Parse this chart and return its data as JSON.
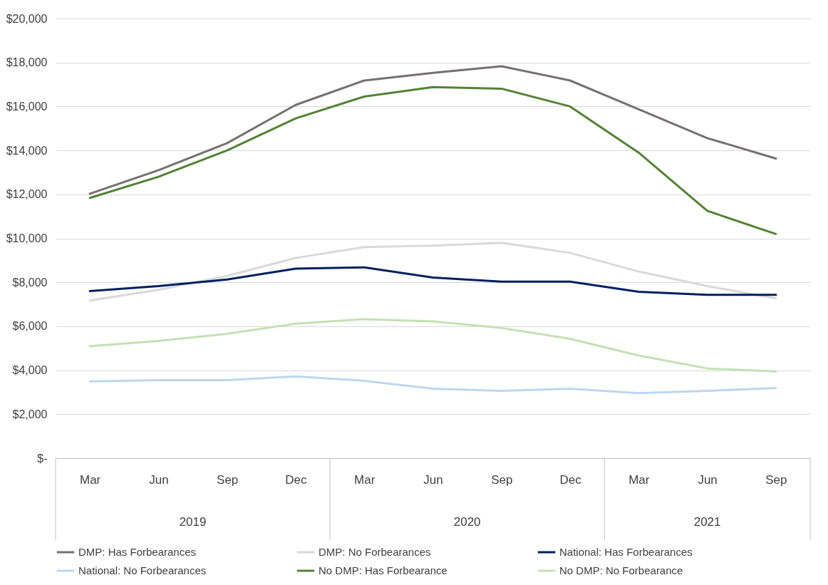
{
  "chart_data": {
    "type": "line",
    "categories": [
      "Mar",
      "Jun",
      "Sep",
      "Dec",
      "Mar",
      "Jun",
      "Sep",
      "Dec",
      "Mar",
      "Jun",
      "Sep"
    ],
    "annotations": [
      "2019",
      "2020",
      "2021"
    ],
    "ylim": [
      0,
      20000
    ],
    "yticks": [
      {
        "value": 0,
        "label": "$-"
      },
      {
        "value": 2000,
        "label": "$2,000"
      },
      {
        "value": 4000,
        "label": "$4,000"
      },
      {
        "value": 6000,
        "label": "$6,000"
      },
      {
        "value": 8000,
        "label": "$8,000"
      },
      {
        "value": 10000,
        "label": "$10,000"
      },
      {
        "value": 12000,
        "label": "$12,000"
      },
      {
        "value": 14000,
        "label": "$14,000"
      },
      {
        "value": 16000,
        "label": "$16,000"
      },
      {
        "value": 18000,
        "label": "$18,000"
      },
      {
        "value": 20000,
        "label": "$20,000"
      }
    ],
    "grid": "y",
    "legend": "bottom",
    "line_style": "solid",
    "marker": "none",
    "series": [
      {
        "name": "DMP: Has Forbearances",
        "color": "#767171",
        "values": [
          12030,
          13100,
          14330,
          16070,
          17180,
          17530,
          17830,
          17180,
          15870,
          14560,
          13630
        ]
      },
      {
        "name": "DMP: No Forbearances",
        "color": "#d9d9d9",
        "values": [
          7170,
          7660,
          8290,
          9110,
          9600,
          9670,
          9800,
          9340,
          8490,
          7830,
          7270
        ]
      },
      {
        "name": "National: Has Forbearances",
        "color": "#002060",
        "values": [
          7600,
          7830,
          8130,
          8620,
          8680,
          8220,
          8030,
          8030,
          7570,
          7430,
          7430
        ]
      },
      {
        "name": "National: No Forbearances",
        "color": "#bdd7ee",
        "values": [
          3490,
          3550,
          3550,
          3720,
          3520,
          3160,
          3060,
          3160,
          2960,
          3060,
          3190
        ]
      },
      {
        "name": "No DMP: Has Forbearance",
        "color": "#548235",
        "values": [
          11840,
          12800,
          14000,
          15460,
          16450,
          16880,
          16810,
          16000,
          13900,
          11250,
          10200
        ]
      },
      {
        "name": "No DMP: No Forbearance",
        "color": "#c5e0b4",
        "values": [
          5100,
          5330,
          5660,
          6120,
          6320,
          6220,
          5920,
          5430,
          4670,
          4080,
          3950
        ]
      }
    ]
  }
}
